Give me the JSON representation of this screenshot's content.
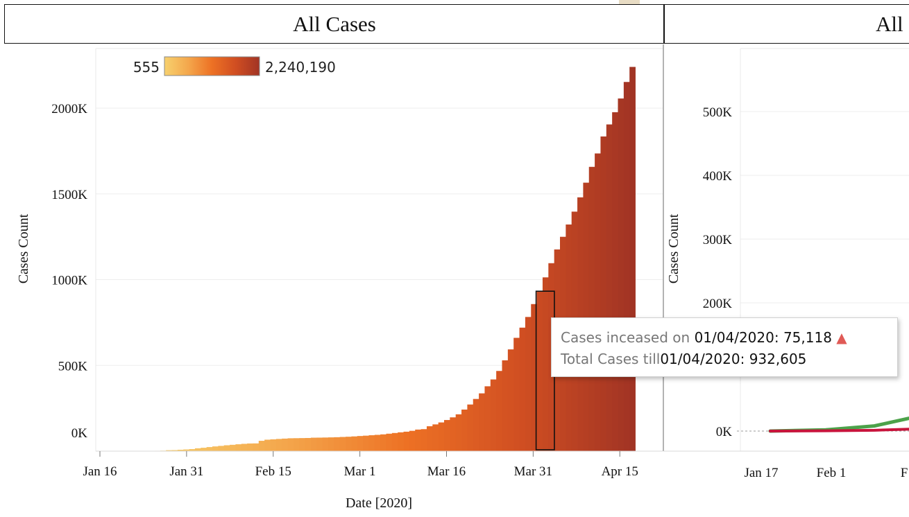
{
  "panels": [
    {
      "title": "All Cases"
    },
    {
      "title": "All"
    }
  ],
  "legend": {
    "min_label": "555",
    "max_label": "2,240,190",
    "colors": [
      "#f7d16e",
      "#f4a74c",
      "#ed7124",
      "#d04e22",
      "#a13424"
    ]
  },
  "tooltip": {
    "line1_label": "Cases inceased on",
    "line1_date": "01/04/2020:",
    "line1_value": "75,118",
    "line1_icon": "up-triangle-icon",
    "line2_label": "Total Cases till",
    "line2_date": "01/04/2020:",
    "line2_value": "932,605",
    "icon_color": "#e05a56"
  },
  "chart_data": [
    {
      "type": "bar",
      "title": "All Cases",
      "xlabel": "Date [2020]",
      "ylabel": "Cases Count",
      "xtick_labels": [
        "Jan 16",
        "Jan 31",
        "Feb 15",
        "Mar 1",
        "Mar 16",
        "Mar 31",
        "Apr 15"
      ],
      "ytick_labels": [
        "0K",
        "500K",
        "1000K",
        "1500K",
        "2000K"
      ],
      "ylim": [
        0,
        2270000
      ],
      "x_start": "Jan 22",
      "values": [
        555,
        654,
        941,
        1434,
        2118,
        2927,
        5578,
        6166,
        8234,
        9927,
        12038,
        16787,
        19881,
        23892,
        27635,
        30794,
        34391,
        37120,
        40150,
        42762,
        44802,
        45221,
        60368,
        66885,
        69030,
        71224,
        73258,
        75136,
        75639,
        76197,
        76819,
        78572,
        78958,
        79561,
        80406,
        81388,
        82746,
        84112,
        86011,
        88369,
        90306,
        92840,
        95120,
        97886,
        101801,
        105847,
        109821,
        113590,
        118620,
        125875,
        128352,
        145205,
        156101,
        167454,
        181574,
        197102,
        214821,
        242500,
        272035,
        304396,
        336953,
        378235,
        418045,
        467653,
        529591,
        593291,
        660706,
        720117,
        782365,
        857487,
        932605,
        1013157,
        1095917,
        1176060,
        1249754,
        1321481,
        1396476,
        1479804,
        1565278,
        1657526,
        1735650,
        1834721,
        1904838,
        1976191,
        2056054,
        2152437,
        2240190
      ],
      "highlight": {
        "label": "01/04/2020",
        "value": 932605
      },
      "legend": "top-left",
      "grid": true
    },
    {
      "type": "line",
      "title": "All",
      "ylabel": "Cases Count",
      "xtick_labels": [
        "Jan 17",
        "Feb 1",
        "F"
      ],
      "ytick_labels": [
        "0K",
        "200K",
        "300K",
        "400K",
        "500K"
      ],
      "ylim": [
        -5000,
        590000
      ],
      "series": [
        {
          "values": [
            0,
            2000,
            8000,
            20000
          ],
          "color": "#4ca24a"
        },
        {
          "values": [
            0,
            400,
            1200,
            3000
          ],
          "color": "#c8143c"
        }
      ],
      "grid": true
    }
  ]
}
